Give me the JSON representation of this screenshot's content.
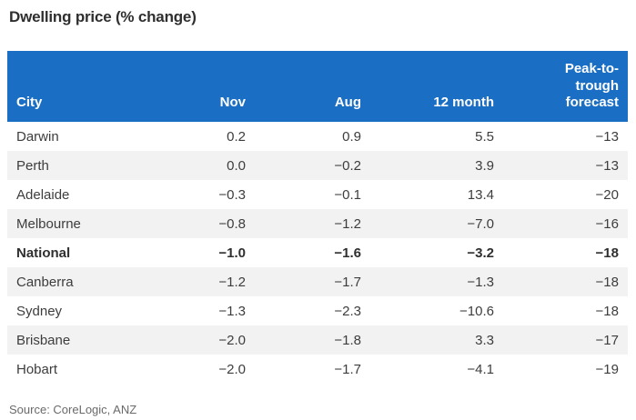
{
  "chart_data": {
    "type": "table",
    "title": "Dwelling price (% change)",
    "columns": [
      "City",
      "Nov",
      "Aug",
      "12 month",
      "Peak-to-trough forecast"
    ],
    "rows": [
      [
        "Darwin",
        0.2,
        0.9,
        5.5,
        -13
      ],
      [
        "Perth",
        0.0,
        -0.2,
        3.9,
        -13
      ],
      [
        "Adelaide",
        -0.3,
        -0.1,
        13.4,
        -20
      ],
      [
        "Melbourne",
        -0.8,
        -1.2,
        -7.0,
        -16
      ],
      [
        "National",
        -1.0,
        -1.6,
        -3.2,
        -18
      ],
      [
        "Canberra",
        -1.2,
        -1.7,
        -1.3,
        -18
      ],
      [
        "Sydney",
        -1.3,
        -2.3,
        -10.6,
        -18
      ],
      [
        "Brisbane",
        -2.0,
        -1.8,
        3.3,
        -17
      ],
      [
        "Hobart",
        -2.0,
        -1.7,
        -4.1,
        -19
      ]
    ],
    "bold_row_index": 4,
    "source": "Source: CoreLogic, ANZ",
    "layout": {
      "numeric_columns_aligned": "right",
      "header_position": "top",
      "row_striping": "even-rows-gray"
    }
  },
  "colors": {
    "header_bg": "#1a6fc4",
    "header_text": "#ffffff",
    "stripe_bg": "#f2f2f2",
    "body_text": "#3d3d3d",
    "title_text": "#2f2f2f",
    "source_text": "#6a6a6a"
  }
}
